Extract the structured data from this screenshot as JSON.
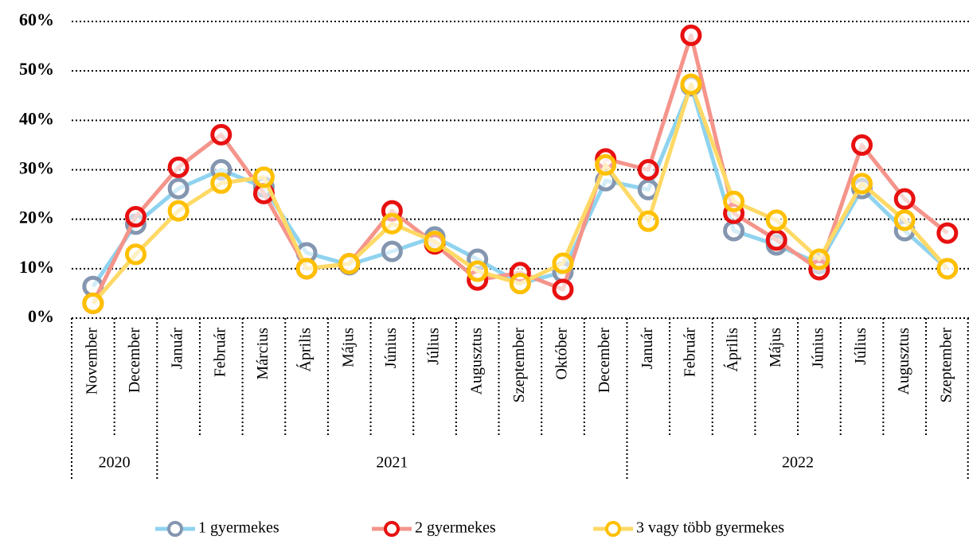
{
  "chart_data": {
    "type": "line",
    "groups": [
      {
        "label": "2020",
        "categories": [
          "November",
          "December"
        ]
      },
      {
        "label": "2021",
        "categories": [
          "Január",
          "Február",
          "Március",
          "Április",
          "Május",
          "Június",
          "Július",
          "Augusztus",
          "Szeptember",
          "Október",
          "December"
        ]
      },
      {
        "label": "2022",
        "categories": [
          "Január",
          "Február",
          "Április",
          "Május",
          "Június",
          "Július",
          "Augusztus",
          "Szeptember"
        ]
      }
    ],
    "series": [
      {
        "name": "1 gyermekes",
        "color": "#8fd3ef",
        "marker_color": "#8496b0",
        "values": [
          6.4,
          19,
          26.2,
          30,
          26.5,
          13.2,
          10.8,
          13.5,
          16.4,
          11.9,
          7,
          9.3,
          27.8,
          26,
          47,
          17.7,
          14.8,
          11,
          26.2,
          17.7,
          10
        ]
      },
      {
        "name": "2 gyermekes",
        "color": "#f4948b",
        "marker_color": "#e81010",
        "values": [
          3,
          20.5,
          30.5,
          37.1,
          25.2,
          10,
          11,
          21.7,
          15,
          7.7,
          9.2,
          5.8,
          32.2,
          30,
          57.2,
          21.2,
          15.8,
          9.8,
          35,
          24.1,
          17.2
        ]
      },
      {
        "name": "3 vagy több gyermekes",
        "color": "#ffd966",
        "marker_color": "#ffc000",
        "values": [
          3,
          12.9,
          21.7,
          27.3,
          28.5,
          10,
          11,
          19.1,
          15.5,
          9.5,
          7,
          11.1,
          31,
          19.6,
          47.3,
          23.6,
          19.8,
          11.9,
          27.2,
          19.8,
          10
        ]
      }
    ],
    "ylim": [
      0,
      60
    ],
    "yticks": [
      {
        "value": 0,
        "label": "0%"
      },
      {
        "value": 10,
        "label": "10%"
      },
      {
        "value": 20,
        "label": "20%"
      },
      {
        "value": 30,
        "label": "30%"
      },
      {
        "value": 40,
        "label": "40%"
      },
      {
        "value": 50,
        "label": "50%"
      },
      {
        "value": 60,
        "label": "60%"
      }
    ],
    "grid": true,
    "legend": "bottom"
  }
}
